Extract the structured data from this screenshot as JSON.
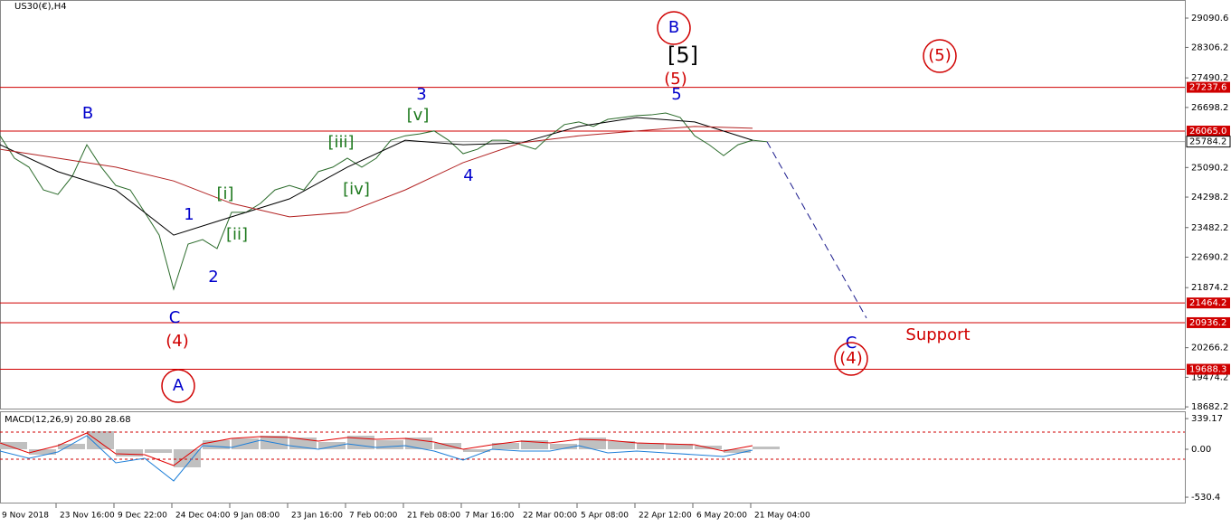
{
  "chart_data": [
    {
      "type": "line",
      "title": "US30(€),H4",
      "ylim": [
        18612,
        29575
      ],
      "yticks": [
        29090.6,
        28306.2,
        27490.2,
        26698.2,
        25090.2,
        24298.2,
        23482.2,
        22690.2,
        21874.2,
        20266.2,
        19474.2,
        18682.2
      ],
      "levels": [
        {
          "value": 27237.6,
          "label": "27237.6"
        },
        {
          "value": 26065,
          "label": "26065.0"
        },
        {
          "value": 21464.2,
          "label": "21464.2"
        },
        {
          "value": 20936.2,
          "label": "20936.2"
        },
        {
          "value": 19688.3,
          "label": "19688.3"
        }
      ],
      "level_color": "#d00000",
      "current_price": 25784.2,
      "series": [
        {
          "color": "#2b6b2b",
          "values": [
            25940,
            25340,
            25100,
            24490,
            24370,
            24860,
            25700,
            25100,
            24610,
            24490,
            23890,
            23280,
            21830,
            23040,
            23160,
            22920,
            23890,
            23890,
            24130,
            24490,
            24610,
            24490,
            24980,
            25100,
            25340,
            25100,
            25340,
            25820,
            25940,
            25990,
            26070,
            25820,
            25460,
            25580,
            25820,
            25820,
            25700,
            25580,
            25940,
            26240,
            26310,
            26190,
            26380,
            26430,
            26480,
            26500,
            26550,
            26430,
            25940,
            25700,
            25410,
            25700,
            25820,
            25780
          ]
        },
        {
          "color": "#000000",
          "values": [
            25700,
            24980,
            24490,
            23280,
            23770,
            24250,
            25100,
            25820,
            25700,
            25750,
            26190,
            26430,
            26310,
            25820
          ]
        },
        {
          "color": "#b22222",
          "values": [
            25580,
            25340,
            25100,
            24730,
            24130,
            23770,
            23890,
            24490,
            25220,
            25750,
            25940,
            26070,
            26190,
            26140
          ]
        }
      ],
      "projection": {
        "color": "#1a1a8c",
        "values": [
          25780,
          21060
        ]
      },
      "annotations": [
        {
          "text": "B",
          "color": "#0000cc",
          "circled": true
        },
        {
          "text": "[5]",
          "color": "#000000"
        },
        {
          "text": "(5)",
          "color": "#d00000"
        },
        {
          "text": "5",
          "color": "#0000cc"
        },
        {
          "text": "3",
          "color": "#0000cc"
        },
        {
          "text": "[v]",
          "color": "#1f7a1f"
        },
        {
          "text": "B",
          "color": "#0000cc"
        },
        {
          "text": "[iii]",
          "color": "#1f7a1f"
        },
        {
          "text": "[i]",
          "color": "#1f7a1f"
        },
        {
          "text": "1",
          "color": "#0000cc"
        },
        {
          "text": "[ii]",
          "color": "#1f7a1f"
        },
        {
          "text": "[iv]",
          "color": "#1f7a1f"
        },
        {
          "text": "4",
          "color": "#0000cc"
        },
        {
          "text": "2",
          "color": "#0000cc"
        },
        {
          "text": "C",
          "color": "#0000cc"
        },
        {
          "text": "(4)",
          "color": "#d00000"
        },
        {
          "text": "A",
          "color": "#0000cc",
          "circled": true
        },
        {
          "text": "(5)",
          "color": "#d00000",
          "circled": true
        },
        {
          "text": "C",
          "color": "#0000cc"
        },
        {
          "text": "(4)",
          "color": "#d00000",
          "circled": true
        },
        {
          "text": "Support",
          "color": "#d00000"
        }
      ],
      "x_labels": [
        "9 Nov 2018",
        "23 Nov 16:00",
        "9 Dec 22:00",
        "24 Dec 04:00",
        "9 Jan 08:00",
        "23 Jan 16:00",
        "7 Feb 00:00",
        "21 Feb 08:00",
        "7 Mar 16:00",
        "22 Mar 00:00",
        "5 Apr 08:00",
        "22 Apr 12:00",
        "6 May 20:00",
        "21 May 04:00"
      ]
    },
    {
      "type": "macd",
      "title": "MACD(12,26,9) 20.80 28.68",
      "ylim": [
        -580,
        420
      ],
      "yticks": [
        339.17,
        {
          "value": 0,
          "label": "0.00"
        },
        -530.4
      ],
      "levels": [
        190,
        -110
      ],
      "level_color": "#d00000",
      "histogram": {
        "color": "#c0c0c0",
        "values": [
          80,
          -60,
          60,
          200,
          -80,
          -40,
          -200,
          100,
          120,
          150,
          130,
          80,
          150,
          100,
          130,
          70,
          -30,
          70,
          100,
          60,
          130,
          90,
          70,
          60,
          40,
          -40,
          30
        ]
      },
      "series": [
        {
          "color": "#1e7fd8",
          "values": [
            -20,
            -100,
            -30,
            150,
            -150,
            -100,
            -350,
            40,
            20,
            100,
            40,
            0,
            60,
            20,
            40,
            -20,
            -120,
            0,
            -20,
            -20,
            40,
            -40,
            -20,
            -40,
            -60,
            -80,
            -10
          ]
        },
        {
          "color": "#e00000",
          "values": [
            70,
            -40,
            40,
            180,
            -50,
            -60,
            -180,
            60,
            120,
            140,
            130,
            90,
            130,
            110,
            120,
            80,
            0,
            50,
            90,
            70,
            110,
            100,
            70,
            60,
            50,
            -20,
            40
          ]
        }
      ]
    }
  ]
}
